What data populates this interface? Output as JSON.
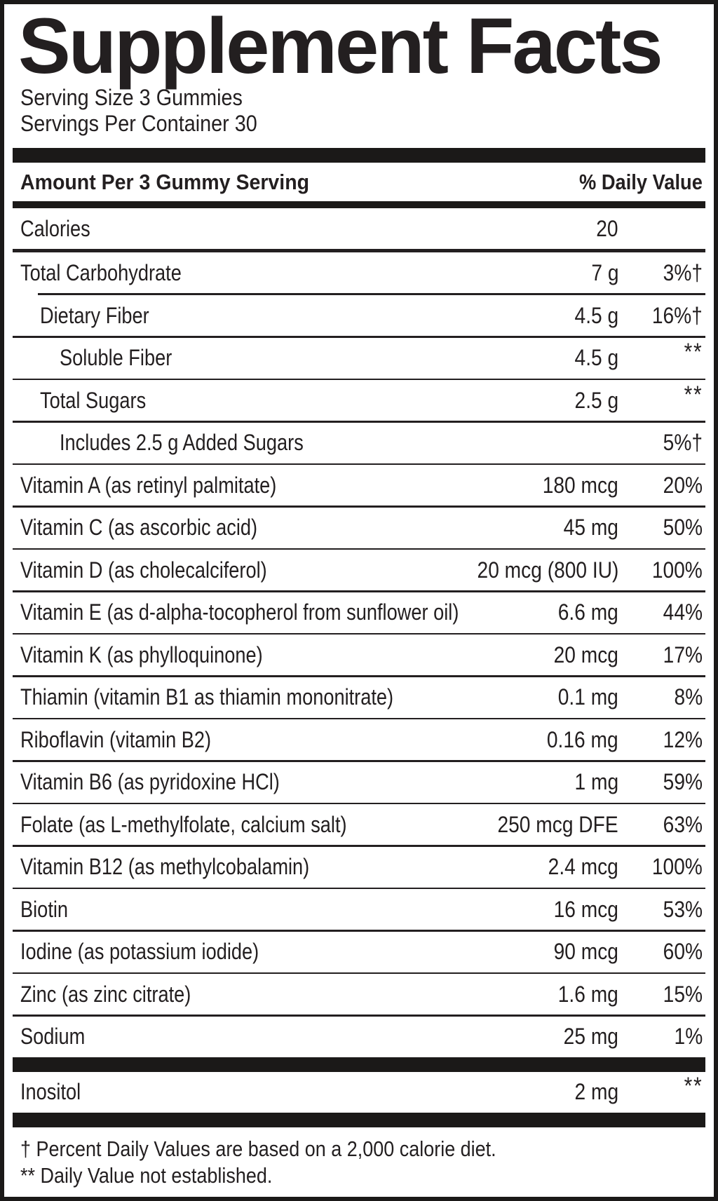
{
  "title": "Supplement Facts",
  "serving": {
    "size": "Serving Size 3 Gummies",
    "per_container": "Servings Per Container 30"
  },
  "header": {
    "amount_label": "Amount Per 3 Gummy Serving",
    "dv_label": "% Daily Value"
  },
  "table": {
    "rows": [
      {
        "name": "Calories",
        "amount": "20",
        "dv": "",
        "indent": 0,
        "rule": "none"
      },
      {
        "name": "Total Carbohydrate",
        "amount": "7 g",
        "dv": "3%†",
        "indent": 0,
        "rule": "medium"
      },
      {
        "name": "Dietary Fiber",
        "amount": "4.5 g",
        "dv": "16%†",
        "indent": 1,
        "rule": "indent"
      },
      {
        "name": "Soluble Fiber",
        "amount": "4.5 g",
        "dv": "**",
        "indent": 2,
        "rule": "thin"
      },
      {
        "name": "Total Sugars",
        "amount": "2.5 g",
        "dv": "**",
        "indent": 1,
        "rule": "thin"
      },
      {
        "name": "Includes 2.5 g Added Sugars",
        "amount": "",
        "dv": "5%†",
        "indent": 2,
        "rule": "thin"
      },
      {
        "name": "Vitamin A (as retinyl palmitate)",
        "amount": "180 mcg",
        "dv": "20%",
        "indent": 0,
        "rule": "thin"
      },
      {
        "name": "Vitamin C (as ascorbic acid)",
        "amount": "45 mg",
        "dv": "50%",
        "indent": 0,
        "rule": "thin"
      },
      {
        "name": "Vitamin D (as cholecalciferol)",
        "amount": "20 mcg (800 IU)",
        "dv": "100%",
        "indent": 0,
        "rule": "thin"
      },
      {
        "name": "Vitamin E (as d-alpha-tocopherol from sunflower oil)",
        "amount": "6.6 mg",
        "dv": "44%",
        "indent": 0,
        "rule": "thin"
      },
      {
        "name": "Vitamin K (as phylloquinone)",
        "amount": "20 mcg",
        "dv": "17%",
        "indent": 0,
        "rule": "thin"
      },
      {
        "name": "Thiamin (vitamin B1 as thiamin mononitrate)",
        "amount": "0.1 mg",
        "dv": "8%",
        "indent": 0,
        "rule": "thin"
      },
      {
        "name": "Riboflavin (vitamin B2)",
        "amount": "0.16 mg",
        "dv": "12%",
        "indent": 0,
        "rule": "thin"
      },
      {
        "name": "Vitamin B6 (as pyridoxine HCl)",
        "amount": "1 mg",
        "dv": "59%",
        "indent": 0,
        "rule": "thin"
      },
      {
        "name": "Folate (as L-methylfolate, calcium salt)",
        "amount": "250 mcg DFE",
        "dv": "63%",
        "indent": 0,
        "rule": "thin"
      },
      {
        "name": "Vitamin B12 (as methylcobalamin)",
        "amount": "2.4 mcg",
        "dv": "100%",
        "indent": 0,
        "rule": "thin"
      },
      {
        "name": "Biotin",
        "amount": "16 mcg",
        "dv": "53%",
        "indent": 0,
        "rule": "thin"
      },
      {
        "name": "Iodine (as potassium iodide)",
        "amount": "90 mcg",
        "dv": "60%",
        "indent": 0,
        "rule": "thin"
      },
      {
        "name": "Zinc (as zinc citrate)",
        "amount": "1.6 mg",
        "dv": "15%",
        "indent": 0,
        "rule": "thin"
      },
      {
        "name": "Sodium",
        "amount": "25 mg",
        "dv": "1%",
        "indent": 0,
        "rule": "thin"
      }
    ]
  },
  "extra_table": {
    "rows": [
      {
        "name": "Inositol",
        "amount": "2 mg",
        "dv": "**",
        "indent": 0,
        "rule": "none"
      }
    ]
  },
  "footnotes": [
    "† Percent Daily Values are based on a 2,000 calorie diet.",
    "** Daily Value not established."
  ],
  "colors": {
    "ink": "#231f20",
    "bar": "#1b1918",
    "background": "#ffffff"
  }
}
